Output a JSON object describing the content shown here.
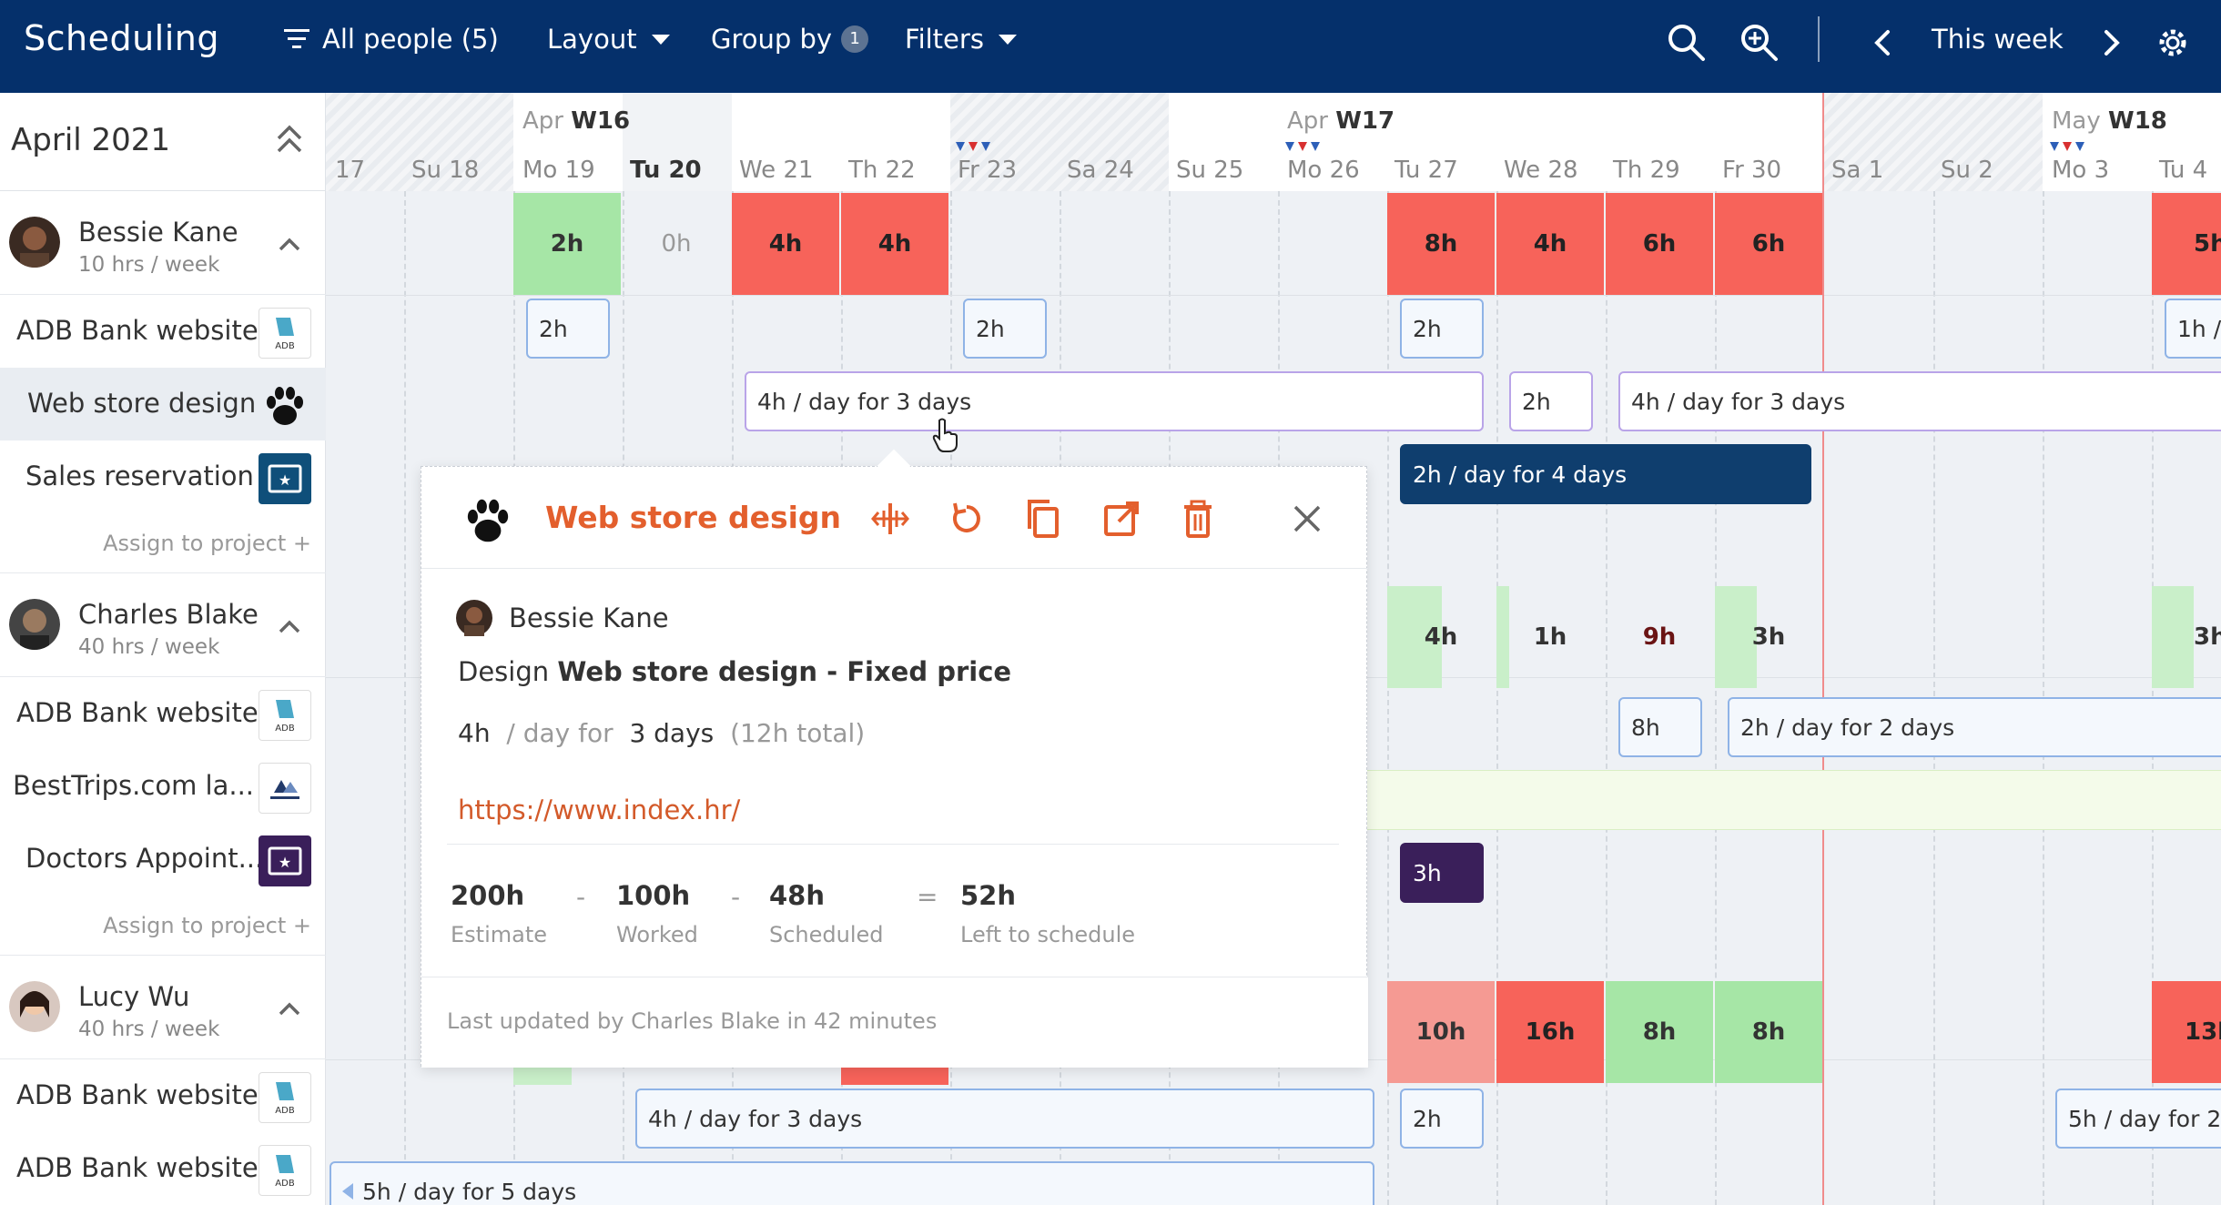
{
  "header": {
    "title": "Scheduling",
    "people_filter": "All people (5)",
    "layout_label": "Layout",
    "groupby_label": "Group by",
    "groupby_count": "1",
    "filters_label": "Filters",
    "period_label": "This week"
  },
  "sidebar": {
    "month": "April 2021",
    "people": [
      {
        "name": "Bessie Kane",
        "hours": "10 hrs / week",
        "projects": [
          "ADB Bank website",
          "Web store design",
          "Sales reservation"
        ],
        "assign": "Assign to project +"
      },
      {
        "name": "Charles Blake",
        "hours": "40 hrs / week",
        "projects": [
          "ADB Bank website",
          "BestTrips.com la...",
          "Doctors Appoint..."
        ],
        "assign": "Assign to project +"
      },
      {
        "name": "Lucy Wu",
        "hours": "40 hrs / week",
        "projects": [
          "ADB Bank website",
          "ADB Bank website"
        ]
      }
    ]
  },
  "timeline": {
    "weeks": [
      {
        "month": "Apr",
        "week": "W16"
      },
      {
        "month": "Apr",
        "week": "W17"
      },
      {
        "month": "May",
        "week": "W18"
      }
    ],
    "days": [
      "17",
      "Su 18",
      "Mo 19",
      "Tu 20",
      "We 21",
      "Th 22",
      "Fr 23",
      "Sa 24",
      "Su 25",
      "Mo 26",
      "Tu 27",
      "We 28",
      "Th 29",
      "Fr 30",
      "Sa 1",
      "Su 2",
      "Mo 3",
      "Tu 4"
    ],
    "bessie_daily": [
      "2h",
      "0h",
      "4h",
      "4h",
      "8h",
      "4h",
      "6h",
      "6h",
      "5h"
    ],
    "bessie_adb": [
      "2h",
      "2h",
      "2h",
      "1h /"
    ],
    "bessie_web": [
      "4h / day for 3 days",
      "2h",
      "4h / day for 3 days"
    ],
    "bessie_sales": "2h / day for 4 days",
    "charles_daily": [
      "4h",
      "1h",
      "9h",
      "3h",
      "3h"
    ],
    "charles_adb": [
      "8h",
      "2h / day for 2 days"
    ],
    "charles_doctors": "3h",
    "lucy_daily": [
      "10h",
      "16h",
      "8h",
      "8h",
      "13h"
    ],
    "lucy_adb": [
      "4h / day for 3 days",
      "2h",
      "5h / day for 2"
    ],
    "lucy_adb2": "5h / day for 5 days"
  },
  "popup": {
    "title": "Web store design",
    "person": "Bessie Kane",
    "desc_prefix": "Design",
    "desc_task": "Web store design - Fixed price",
    "alloc_hours": "4h",
    "alloc_sep": "/ day for",
    "alloc_days": "3 days",
    "alloc_total": "(12h total)",
    "link": "https://www.index.hr/",
    "stats": [
      {
        "value": "200h",
        "label": "Estimate"
      },
      {
        "value": "100h",
        "label": "Worked"
      },
      {
        "value": "48h",
        "label": "Scheduled"
      },
      {
        "value": "52h",
        "label": "Left to schedule"
      }
    ],
    "ops": [
      "-",
      "-",
      "="
    ],
    "footer": "Last updated by Charles Blake in 42 minutes"
  },
  "colors": {
    "header_bg": "#05306b",
    "over_red": "#f7635a",
    "ok_green": "#a6e6a6",
    "accent_orange": "#e35f2d"
  }
}
